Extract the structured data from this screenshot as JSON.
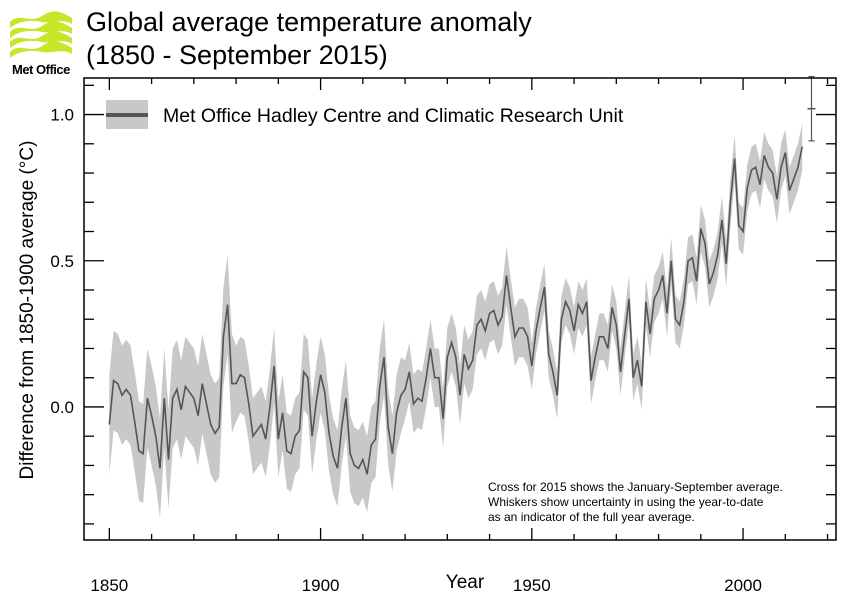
{
  "logo": {
    "text": "Met Office",
    "color": "#c6e62a"
  },
  "chart_data": {
    "type": "line",
    "title": [
      "Global average temperature anomaly",
      "(1850 - September 2015)"
    ],
    "xlabel": "Year",
    "ylabel": "Difference from 1850-1900 average (°C)",
    "xlim": [
      1844,
      2022
    ],
    "ylim": [
      -0.455,
      1.125
    ],
    "x_ticks": [
      "1850",
      "1900",
      "1950",
      "2000"
    ],
    "y_ticks": [
      "0.0",
      "0.5",
      "1.0"
    ],
    "grid": false,
    "legend": {
      "position": "top-left",
      "entries": [
        {
          "name": "Met Office Hadley Centre and Climatic Research Unit"
        }
      ]
    },
    "colors": {
      "line": "#555555",
      "band": "#c8c8c8"
    },
    "series": [
      {
        "name": "Met Office Hadley Centre and Climatic Research Unit",
        "start_year": 1850,
        "values": [
          -0.06,
          0.09,
          0.08,
          0.04,
          0.06,
          0.04,
          -0.05,
          -0.15,
          -0.16,
          0.03,
          -0.03,
          -0.1,
          -0.21,
          0.03,
          -0.18,
          0.03,
          0.06,
          -0.01,
          0.07,
          0.05,
          0.03,
          -0.03,
          0.08,
          0.01,
          -0.06,
          -0.09,
          -0.07,
          0.24,
          0.35,
          0.08,
          0.08,
          0.11,
          0.1,
          0.01,
          -0.1,
          -0.08,
          -0.06,
          -0.11,
          0.0,
          0.14,
          -0.11,
          -0.02,
          -0.15,
          -0.16,
          -0.1,
          -0.08,
          0.12,
          0.1,
          -0.1,
          0.02,
          0.11,
          0.05,
          -0.09,
          -0.17,
          -0.21,
          -0.07,
          0.03,
          -0.16,
          -0.2,
          -0.21,
          -0.18,
          -0.23,
          -0.13,
          -0.11,
          0.07,
          0.17,
          -0.07,
          -0.16,
          -0.02,
          0.04,
          0.06,
          0.12,
          0.01,
          0.03,
          0.02,
          0.1,
          0.2,
          0.1,
          0.1,
          -0.04,
          0.17,
          0.22,
          0.17,
          0.04,
          0.18,
          0.13,
          0.16,
          0.28,
          0.3,
          0.26,
          0.32,
          0.33,
          0.28,
          0.31,
          0.45,
          0.34,
          0.24,
          0.27,
          0.27,
          0.24,
          0.14,
          0.26,
          0.34,
          0.41,
          0.18,
          0.12,
          0.04,
          0.3,
          0.36,
          0.33,
          0.26,
          0.35,
          0.32,
          0.36,
          0.09,
          0.17,
          0.24,
          0.24,
          0.2,
          0.34,
          0.28,
          0.12,
          0.25,
          0.37,
          0.1,
          0.16,
          0.07,
          0.36,
          0.25,
          0.37,
          0.4,
          0.45,
          0.32,
          0.5,
          0.3,
          0.28,
          0.36,
          0.5,
          0.51,
          0.43,
          0.61,
          0.56,
          0.42,
          0.46,
          0.52,
          0.64,
          0.49,
          0.7,
          0.85,
          0.62,
          0.6,
          0.75,
          0.81,
          0.82,
          0.76,
          0.86,
          0.82,
          0.8,
          0.71,
          0.82,
          0.87,
          0.74,
          0.78,
          0.82,
          0.89
        ],
        "uncertainty_half_width": [
          {
            "from": 1850,
            "to": 1879,
            "value": 0.17
          },
          {
            "from": 1880,
            "to": 1919,
            "value": 0.13
          },
          {
            "from": 1920,
            "to": 1949,
            "value": 0.1
          },
          {
            "from": 1950,
            "to": 2014,
            "value": 0.08
          }
        ]
      }
    ],
    "marker_2015": {
      "year": 2015,
      "value": 1.02,
      "whisker_low": 0.91,
      "whisker_high": 1.13
    },
    "annotation": [
      "Cross for 2015 shows the January-September average.",
      "Whiskers show uncertainty in using the year-to-date",
      "as an indicator of the full year average."
    ]
  }
}
